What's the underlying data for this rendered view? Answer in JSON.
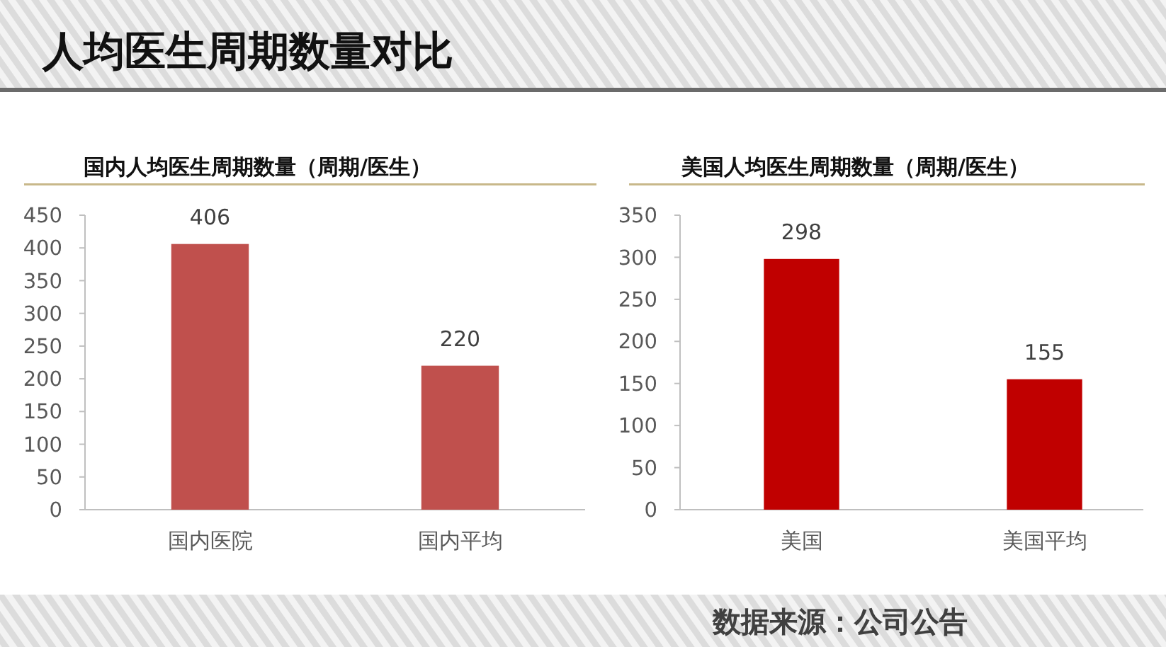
{
  "chart_data": [
    {
      "type": "other",
      "title": "人均医生周期数量对比",
      "annotations": [
        "数据来源：公司公告"
      ]
    },
    {
      "type": "bar",
      "title": "国内人均医生周期数量（周期/医生）",
      "categories": [
        "国内医院",
        "国内平均"
      ],
      "values": [
        406,
        220
      ],
      "color": "#c0504d",
      "ylim": [
        0,
        450
      ],
      "yticks": [
        0,
        50,
        100,
        150,
        200,
        250,
        300,
        350,
        400,
        450
      ],
      "data_labels": true
    },
    {
      "type": "bar",
      "title": "美国人均医生周期数量（周期/医生）",
      "categories": [
        "美国",
        "美国平均"
      ],
      "values": [
        298,
        155
      ],
      "color": "#c00000",
      "ylim": [
        0,
        350
      ],
      "yticks": [
        0,
        50,
        100,
        150,
        200,
        250,
        300,
        350
      ],
      "data_labels": true
    }
  ]
}
